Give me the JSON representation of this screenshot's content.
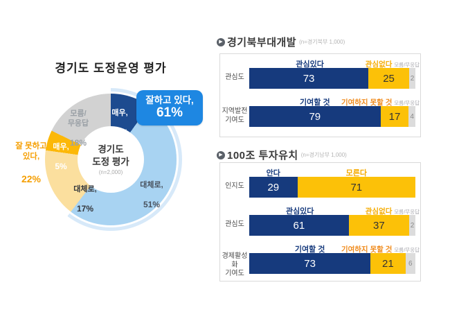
{
  "donut": {
    "title": "경기도 도정운영 평가",
    "center": {
      "line1": "경기도",
      "line2": "도정 평가",
      "n_label": "(n=2,000)"
    },
    "callout": {
      "label": "잘하고 있다,",
      "value": "61%",
      "color": "#1e87e2"
    },
    "negative": {
      "label": "잘 못하고\n있다,",
      "value": "22%",
      "color": "#f59e00"
    }
  },
  "sections": [
    {
      "title": "경기북부대개발",
      "n_label": "(n=경기북부 1,000)"
    },
    {
      "title": "100조 투자유치",
      "n_label": "(n=경기남부 1,000)"
    }
  ],
  "colors": {
    "bar_positive": "#163a7d",
    "bar_negative": "#fcc108",
    "bar_unknown": "#dcdcdc",
    "donut_halo": "#d7e9f9",
    "label_positive": "#163a7d",
    "label_negative_gold": "#f5ab00",
    "label_negative_orange": "#f08c1e",
    "label_unknown": "#a9a9af"
  },
  "chart_data": [
    {
      "type": "pie",
      "title": "경기도 도정운영 평가",
      "center_label": "경기도 도정 평가 (n=2,000)",
      "segments": [
        {
          "label": "매우,",
          "display": "10%",
          "value": 10,
          "color": "#1d4b8f",
          "text_color": "#ffffff"
        },
        {
          "label": "대체로,",
          "display": "51%",
          "value": 51,
          "color": "#a8d3f2",
          "text_color": "#49525e"
        },
        {
          "label": "대체로,",
          "display": "17%",
          "value": 17,
          "color": "#fbdf9e",
          "text_color": "#33363b"
        },
        {
          "label": "매우,",
          "display": "5%",
          "value": 5,
          "color": "#fcb808",
          "text_color": "#ffffff"
        },
        {
          "label": "모름/\n무응답",
          "display": "18%",
          "value": 18,
          "color": "#d2d2d2",
          "text_color": "#9aa0a6"
        }
      ],
      "annotations": [
        {
          "label": "잘하고 있다",
          "value": 61
        },
        {
          "label": "잘 못하고 있다",
          "value": 22
        }
      ],
      "highlight_span_values": 61
    },
    {
      "type": "bar",
      "title": "경기북부대개발",
      "n_label": "(n=경기북부 1,000)",
      "xlim": [
        0,
        100
      ],
      "rows": [
        {
          "category": "관심도",
          "series": [
            {
              "name": "관심있다",
              "value": 73,
              "color": "#163a7d",
              "name_color": "#163a7d",
              "value_color": "#ffffff"
            },
            {
              "name": "관심없다",
              "value": 25,
              "color": "#fcc108",
              "name_color": "#f5ab00",
              "value_color": "#333333"
            },
            {
              "name": "모름/무응답",
              "value": 2,
              "color": "#dcdcdc",
              "name_color": "#a9a9af",
              "value_color": "#8a8a8a"
            }
          ]
        },
        {
          "category": "지역발전\n기여도",
          "series": [
            {
              "name": "기여할 것",
              "value": 79,
              "color": "#163a7d",
              "name_color": "#163a7d",
              "value_color": "#ffffff"
            },
            {
              "name": "기여하지 못할 것",
              "value": 17,
              "color": "#fcc108",
              "name_color": "#f08c1e",
              "value_color": "#333333"
            },
            {
              "name": "모름/무응답",
              "value": 4,
              "color": "#dcdcdc",
              "name_color": "#a9a9af",
              "value_color": "#8a8a8a"
            }
          ]
        }
      ]
    },
    {
      "type": "bar",
      "title": "100조 투자유치",
      "n_label": "(n=경기남부 1,000)",
      "xlim": [
        0,
        100
      ],
      "rows": [
        {
          "category": "인지도",
          "series": [
            {
              "name": "안다",
              "value": 29,
              "color": "#163a7d",
              "name_color": "#163a7d",
              "value_color": "#ffffff"
            },
            {
              "name": "모른다",
              "value": 71,
              "color": "#fcc108",
              "name_color": "#f5ab00",
              "value_color": "#333333"
            }
          ]
        },
        {
          "category": "관심도",
          "series": [
            {
              "name": "관심있다",
              "value": 61,
              "color": "#163a7d",
              "name_color": "#163a7d",
              "value_color": "#ffffff"
            },
            {
              "name": "관심없다",
              "value": 37,
              "color": "#fcc108",
              "name_color": "#f5ab00",
              "value_color": "#333333"
            },
            {
              "name": "모름/무응답",
              "value": 2,
              "color": "#dcdcdc",
              "name_color": "#a9a9af",
              "value_color": "#8a8a8a"
            }
          ]
        },
        {
          "category": "경제활성화\n기여도",
          "series": [
            {
              "name": "기여할 것",
              "value": 73,
              "color": "#163a7d",
              "name_color": "#163a7d",
              "value_color": "#ffffff"
            },
            {
              "name": "기여하지 못할 것",
              "value": 21,
              "color": "#fcc108",
              "name_color": "#f08c1e",
              "value_color": "#333333"
            },
            {
              "name": "모름/무응답",
              "value": 6,
              "color": "#dcdcdc",
              "name_color": "#a9a9af",
              "value_color": "#8a8a8a"
            }
          ]
        }
      ]
    }
  ]
}
